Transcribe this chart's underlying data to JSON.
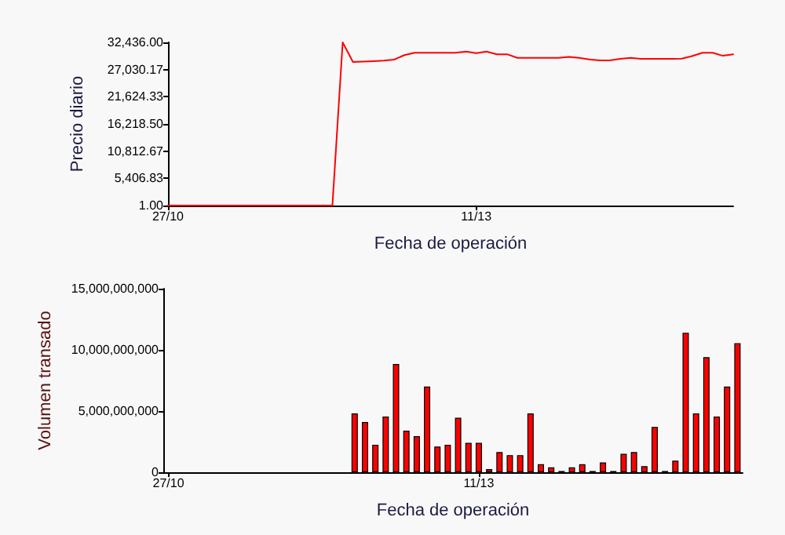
{
  "chart_data": [
    {
      "type": "line",
      "xlabel": "Fecha de operación",
      "ylabel": "Precio diario",
      "categories": [
        "27/10",
        null,
        null,
        null,
        null,
        null,
        null,
        null,
        null,
        null,
        null,
        null,
        null,
        null,
        null,
        null,
        null,
        null,
        null,
        null,
        null,
        null,
        null,
        null,
        null,
        null,
        null,
        null,
        null,
        null,
        "11/13",
        null,
        null,
        null,
        null,
        null,
        null,
        null,
        null,
        null,
        null,
        null,
        null,
        null,
        null,
        null,
        null,
        null,
        null,
        null,
        null,
        null,
        null,
        null,
        null,
        null
      ],
      "series": [
        {
          "color": "#ff0000",
          "values": [
            1,
            1,
            1,
            1,
            1,
            1,
            1,
            1,
            1,
            1,
            1,
            1,
            1,
            1,
            1,
            1,
            1,
            32436,
            28530,
            28600,
            28700,
            28800,
            29000,
            29900,
            30380,
            30380,
            30380,
            30380,
            30380,
            30590,
            30280,
            30590,
            30070,
            30070,
            29350,
            29350,
            29350,
            29350,
            29350,
            29560,
            29350,
            29050,
            28840,
            28840,
            29150,
            29350,
            29150,
            29150,
            29150,
            29150,
            29200,
            29700,
            30380,
            30380,
            29770,
            30070
          ]
        }
      ],
      "ylim": [
        1,
        32436
      ],
      "yticks": [
        {
          "value": 1,
          "label": "1.00"
        },
        {
          "value": 5406.83,
          "label": "5,406.83"
        },
        {
          "value": 10812.67,
          "label": "10,812.67"
        },
        {
          "value": 16218.5,
          "label": "16,218.50"
        },
        {
          "value": 21624.33,
          "label": "21,624.33"
        },
        {
          "value": 27030.17,
          "label": "27,030.17"
        },
        {
          "value": 32436,
          "label": "32,436.00"
        }
      ],
      "marker": "none",
      "line_style": "solid",
      "grid": false
    },
    {
      "type": "bar",
      "xlabel": "Fecha de operación",
      "ylabel": "Volumen transado",
      "categories": [
        "27/10",
        null,
        null,
        null,
        null,
        null,
        null,
        null,
        null,
        null,
        null,
        null,
        null,
        null,
        null,
        null,
        null,
        null,
        null,
        null,
        null,
        null,
        null,
        null,
        null,
        null,
        null,
        null,
        null,
        null,
        "11/13",
        null,
        null,
        null,
        null,
        null,
        null,
        null,
        null,
        null,
        null,
        null,
        null,
        null,
        null,
        null,
        null,
        null,
        null,
        null,
        null,
        null,
        null,
        null,
        null,
        null
      ],
      "series": [
        {
          "color": "#ff0000",
          "values": [
            null,
            null,
            null,
            null,
            null,
            null,
            null,
            null,
            null,
            null,
            null,
            null,
            null,
            null,
            null,
            null,
            null,
            null,
            4800000000,
            4100000000,
            2250000000,
            4550000000,
            8850000000,
            3400000000,
            2950000000,
            7000000000,
            2100000000,
            2250000000,
            4450000000,
            2400000000,
            2400000000,
            250000000,
            1650000000,
            1400000000,
            1400000000,
            4800000000,
            650000000,
            400000000,
            100000000,
            400000000,
            650000000,
            100000000,
            800000000,
            100000000,
            1500000000,
            1650000000,
            500000000,
            3700000000,
            100000000,
            950000000,
            11400000000,
            4800000000,
            9400000000,
            4550000000,
            7000000000,
            10550000000
          ]
        }
      ],
      "ylim": [
        0,
        15000000000
      ],
      "yticks": [
        {
          "value": 0,
          "label": "0"
        },
        {
          "value": 5000000000,
          "label": "5,000,000,000"
        },
        {
          "value": 10000000000,
          "label": "10,000,000,000"
        },
        {
          "value": 15000000000,
          "label": "15,000,000,000"
        }
      ],
      "grid": false
    }
  ]
}
